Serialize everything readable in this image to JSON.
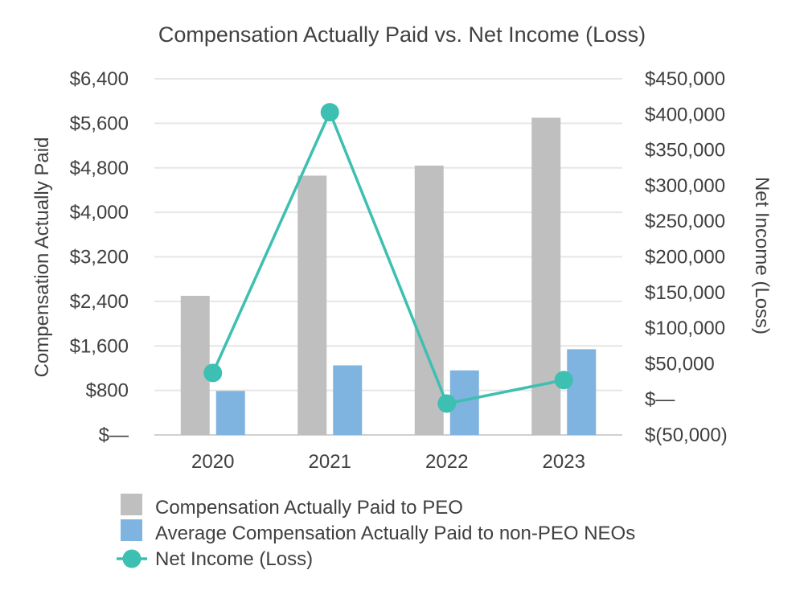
{
  "chart_data": {
    "type": "bar",
    "title": "Compensation Actually Paid vs. Net Income (Loss)",
    "categories": [
      "2020",
      "2021",
      "2022",
      "2023"
    ],
    "ylabel": "Compensation Actually Paid",
    "y2label": "Net Income (Loss)",
    "ylim": [
      0,
      6400
    ],
    "y2lim": [
      -50000,
      450000
    ],
    "yticks": [
      0,
      800,
      1600,
      2400,
      3200,
      4000,
      4800,
      5600,
      6400
    ],
    "ytick_labels": [
      "$—",
      "$800",
      "$1,600",
      "$2,400",
      "$3,200",
      "$4,000",
      "$4,800",
      "$5,600",
      "$6,400"
    ],
    "y2ticks": [
      -50000,
      0,
      50000,
      100000,
      150000,
      200000,
      250000,
      300000,
      350000,
      400000,
      450000
    ],
    "y2tick_labels": [
      "$(50,000)",
      "$—",
      "$50,000",
      "$100,000",
      "$150,000",
      "$200,000",
      "$250,000",
      "$300,000",
      "$350,000",
      "$400,000",
      "$450,000"
    ],
    "grid": true,
    "legend_position": "bottom",
    "series": [
      {
        "name": "Compensation Actually Paid to PEO",
        "type": "bar",
        "axis": "left",
        "color": "#bfbfbf",
        "values": [
          2500,
          4660,
          4840,
          5700
        ]
      },
      {
        "name": "Average Compensation Actually Paid to non-PEO NEOs",
        "type": "bar",
        "axis": "left",
        "color": "#7fb4e0",
        "values": [
          790,
          1250,
          1160,
          1540
        ]
      },
      {
        "name": "Net Income (Loss)",
        "type": "line",
        "axis": "right",
        "color": "#3dbfb1",
        "values": [
          37000,
          403000,
          -6000,
          27000
        ]
      }
    ]
  }
}
